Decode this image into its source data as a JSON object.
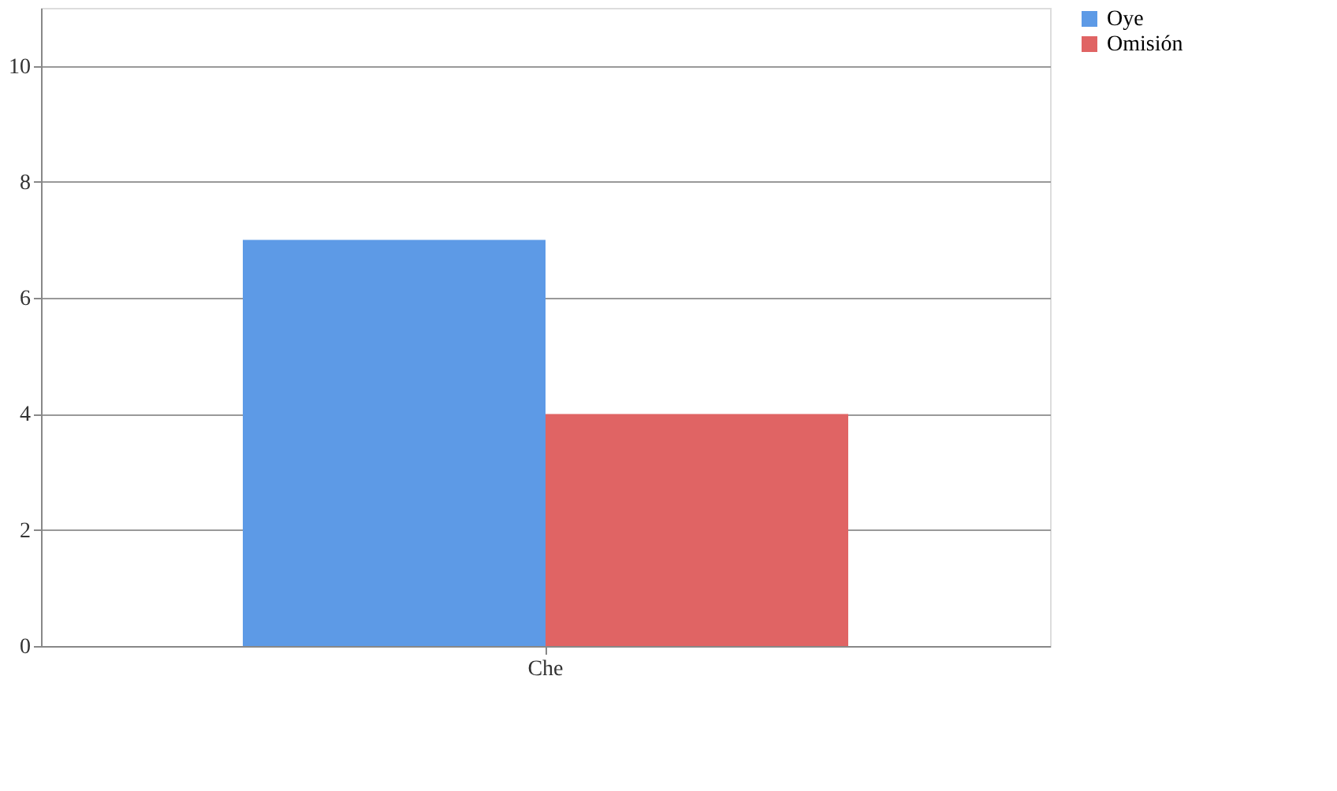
{
  "chart_data": {
    "type": "bar",
    "categories": [
      "Che"
    ],
    "series": [
      {
        "name": "Oye",
        "color": "#5d9ae6",
        "values": [
          7
        ]
      },
      {
        "name": "Omisión",
        "color": "#e06464",
        "values": [
          4
        ]
      }
    ],
    "ylim": [
      0,
      11
    ],
    "yticks": [
      0,
      2,
      4,
      6,
      8,
      10
    ],
    "grid": "y",
    "legend": "right"
  }
}
